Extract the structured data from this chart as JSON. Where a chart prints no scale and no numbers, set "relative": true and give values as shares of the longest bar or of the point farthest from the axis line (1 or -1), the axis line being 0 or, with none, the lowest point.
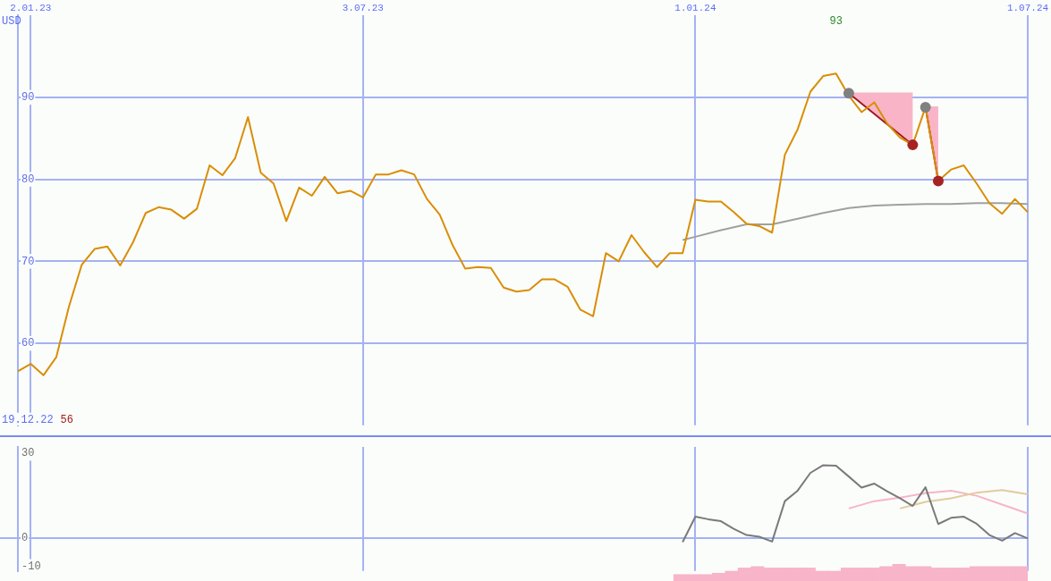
{
  "chart_data": [
    {
      "type": "line",
      "ylabel": "USD",
      "categories": [
        null,
        "2.01.23",
        null,
        null,
        null,
        null,
        null,
        null,
        null,
        null,
        null,
        null,
        null,
        null,
        null,
        null,
        null,
        null,
        null,
        null,
        null,
        null,
        null,
        null,
        null,
        null,
        null,
        "3.07.23",
        null,
        null,
        null,
        null,
        null,
        null,
        null,
        null,
        null,
        null,
        null,
        null,
        null,
        null,
        null,
        null,
        null,
        null,
        null,
        null,
        null,
        null,
        null,
        null,
        null,
        "1.01.24",
        null,
        null,
        null,
        null,
        null,
        null,
        null,
        null,
        null,
        null,
        null,
        null,
        null,
        null,
        null,
        null,
        null,
        null,
        null,
        null,
        null,
        null,
        null,
        null,
        null,
        "1.07.24"
      ],
      "ylim": [
        50,
        100
      ],
      "yticks": [
        60,
        70,
        80,
        90
      ],
      "grid": true,
      "annotations": [
        "19.12.22",
        "56",
        "93"
      ],
      "series": [
        {
          "type": "line",
          "color": "#9e1b1b",
          "values": [
            null,
            null,
            null,
            null,
            null,
            null,
            null,
            null,
            null,
            null,
            null,
            null,
            null,
            null,
            null,
            null,
            null,
            null,
            null,
            null,
            null,
            null,
            null,
            null,
            null,
            null,
            null,
            null,
            null,
            null,
            null,
            null,
            null,
            null,
            null,
            null,
            null,
            null,
            null,
            null,
            null,
            null,
            null,
            null,
            null,
            null,
            null,
            null,
            null,
            null,
            null,
            null,
            null,
            null,
            null,
            null,
            null,
            null,
            null,
            null,
            null,
            null,
            null,
            null,
            null,
            90.5,
            null,
            null,
            null,
            null,
            84.2,
            null,
            null,
            null,
            null,
            null,
            null,
            null,
            null,
            null
          ],
          "lower": [
            null,
            null,
            null,
            null,
            null,
            null,
            null,
            null,
            null,
            null,
            null,
            null,
            null,
            null,
            null,
            null,
            null,
            null,
            null,
            null,
            null,
            null,
            null,
            null,
            null,
            null,
            null,
            null,
            null,
            null,
            null,
            null,
            null,
            null,
            null,
            null,
            null,
            null,
            null,
            null,
            null,
            null,
            null,
            null,
            null,
            null,
            null,
            null,
            null,
            null,
            null,
            null,
            null,
            null,
            null,
            null,
            null,
            null,
            null,
            null,
            null,
            null,
            null,
            null,
            null,
            90.5,
            null,
            null,
            null,
            null,
            84.2,
            null,
            null,
            null,
            null,
            null,
            null,
            null,
            null,
            null
          ],
          "upper": [
            null,
            null,
            null,
            null,
            null,
            null,
            null,
            null,
            null,
            null,
            null,
            null,
            null,
            null,
            null,
            null,
            null,
            null,
            null,
            null,
            null,
            null,
            null,
            null,
            null,
            null,
            null,
            null,
            null,
            null,
            null,
            null,
            null,
            null,
            null,
            null,
            null,
            null,
            null,
            null,
            null,
            null,
            null,
            null,
            null,
            null,
            null,
            null,
            null,
            null,
            null,
            null,
            null,
            null,
            null,
            null,
            null,
            null,
            null,
            null,
            null,
            null,
            null,
            null,
            null,
            90.6,
            null,
            null,
            null,
            null,
            90.6,
            null,
            null,
            null,
            null,
            null,
            null,
            null,
            null,
            null
          ]
        },
        {
          "type": "line",
          "color": "#9e1b1b",
          "values": [
            null,
            null,
            null,
            null,
            null,
            null,
            null,
            null,
            null,
            null,
            null,
            null,
            null,
            null,
            null,
            null,
            null,
            null,
            null,
            null,
            null,
            null,
            null,
            null,
            null,
            null,
            null,
            null,
            null,
            null,
            null,
            null,
            null,
            null,
            null,
            null,
            null,
            null,
            null,
            null,
            null,
            null,
            null,
            null,
            null,
            null,
            null,
            null,
            null,
            null,
            null,
            null,
            null,
            null,
            null,
            null,
            null,
            null,
            null,
            null,
            null,
            null,
            null,
            null,
            null,
            null,
            null,
            null,
            null,
            null,
            null,
            88.8,
            79.8,
            null,
            null,
            null,
            null,
            null,
            null,
            null
          ],
          "lower": [
            null,
            null,
            null,
            null,
            null,
            null,
            null,
            null,
            null,
            null,
            null,
            null,
            null,
            null,
            null,
            null,
            null,
            null,
            null,
            null,
            null,
            null,
            null,
            null,
            null,
            null,
            null,
            null,
            null,
            null,
            null,
            null,
            null,
            null,
            null,
            null,
            null,
            null,
            null,
            null,
            null,
            null,
            null,
            null,
            null,
            null,
            null,
            null,
            null,
            null,
            null,
            null,
            null,
            null,
            null,
            null,
            null,
            null,
            null,
            null,
            null,
            null,
            null,
            null,
            null,
            null,
            null,
            null,
            null,
            null,
            null,
            88.8,
            79.8,
            null,
            null,
            null,
            null,
            null,
            null,
            null
          ],
          "upper": [
            null,
            null,
            null,
            null,
            null,
            null,
            null,
            null,
            null,
            null,
            null,
            null,
            null,
            null,
            null,
            null,
            null,
            null,
            null,
            null,
            null,
            null,
            null,
            null,
            null,
            null,
            null,
            null,
            null,
            null,
            null,
            null,
            null,
            null,
            null,
            null,
            null,
            null,
            null,
            null,
            null,
            null,
            null,
            null,
            null,
            null,
            null,
            null,
            null,
            null,
            null,
            null,
            null,
            null,
            null,
            null,
            null,
            null,
            null,
            null,
            null,
            null,
            null,
            null,
            null,
            null,
            null,
            null,
            null,
            null,
            null,
            88.9,
            88.9,
            null,
            null,
            null,
            null,
            null,
            null,
            null
          ]
        },
        {
          "type": "line",
          "color": "#a0a0a0",
          "values": [
            null,
            null,
            null,
            null,
            null,
            null,
            null,
            null,
            null,
            null,
            null,
            null,
            null,
            null,
            null,
            null,
            null,
            null,
            null,
            null,
            null,
            null,
            null,
            null,
            null,
            null,
            null,
            null,
            null,
            null,
            null,
            null,
            null,
            null,
            null,
            null,
            null,
            null,
            null,
            null,
            null,
            null,
            null,
            null,
            null,
            null,
            null,
            null,
            null,
            null,
            null,
            null,
            72.6,
            73.0,
            null,
            73.8,
            null,
            74.5,
            null,
            74.5,
            null,
            75.2,
            null,
            75.9,
            null,
            76.5,
            null,
            76.8,
            null,
            76.9,
            null,
            77.0,
            null,
            77.0,
            null,
            77.1,
            null,
            77.1,
            null,
            77.0
          ]
        },
        {
          "type": "line",
          "color": "#d98e04",
          "values": [
            56.6,
            57.5,
            56.1,
            58.3,
            64.5,
            69.6,
            71.5,
            71.8,
            69.5,
            72.3,
            75.9,
            76.6,
            76.3,
            75.2,
            76.4,
            81.7,
            80.5,
            82.6,
            87.6,
            80.8,
            79.5,
            74.9,
            79.0,
            78.0,
            80.3,
            78.3,
            78.6,
            77.8,
            80.6,
            80.6,
            81.1,
            80.6,
            77.6,
            75.7,
            72.0,
            69.1,
            69.3,
            69.2,
            66.8,
            66.3,
            66.5,
            67.8,
            67.8,
            66.9,
            64.1,
            63.3,
            71.0,
            70.0,
            73.2,
            71.1,
            69.3,
            71.0,
            71.0,
            77.5,
            77.3,
            77.3,
            76.0,
            74.6,
            74.3,
            73.5,
            83.0,
            86.1,
            90.7,
            92.6,
            92.9,
            90.2,
            88.2,
            89.4,
            86.8,
            85.1,
            84.2,
            88.8,
            79.8,
            81.2,
            81.7,
            79.5,
            77.1,
            75.8,
            77.6,
            76.0
          ]
        },
        {
          "type": "scatter",
          "marker": "circle",
          "color": "#808080",
          "values": [
            null,
            null,
            null,
            null,
            null,
            null,
            null,
            null,
            null,
            null,
            null,
            null,
            null,
            null,
            null,
            null,
            null,
            null,
            null,
            null,
            null,
            null,
            null,
            null,
            null,
            null,
            null,
            null,
            null,
            null,
            null,
            null,
            null,
            null,
            null,
            null,
            null,
            null,
            null,
            null,
            null,
            null,
            null,
            null,
            null,
            null,
            null,
            null,
            null,
            null,
            null,
            null,
            null,
            null,
            null,
            null,
            null,
            null,
            null,
            null,
            null,
            null,
            null,
            null,
            null,
            90.5,
            null,
            null,
            null,
            null,
            null,
            88.8,
            null,
            null,
            null,
            null,
            null,
            null,
            null,
            null
          ]
        },
        {
          "type": "scatter",
          "marker": "circle",
          "color": "#a52323",
          "values": [
            null,
            null,
            null,
            null,
            null,
            null,
            null,
            null,
            null,
            null,
            null,
            null,
            null,
            null,
            null,
            null,
            null,
            null,
            null,
            null,
            null,
            null,
            null,
            null,
            null,
            null,
            null,
            null,
            null,
            null,
            null,
            null,
            null,
            null,
            null,
            null,
            null,
            null,
            null,
            null,
            null,
            null,
            null,
            null,
            null,
            null,
            null,
            null,
            null,
            null,
            null,
            null,
            null,
            null,
            null,
            null,
            null,
            null,
            null,
            null,
            null,
            null,
            null,
            null,
            null,
            null,
            null,
            null,
            null,
            null,
            84.2,
            null,
            79.8,
            null,
            null,
            null,
            null,
            null,
            null,
            null
          ]
        }
      ]
    },
    {
      "type": "line",
      "tick_labels": "y",
      "categories": [
        null,
        "2.01.23",
        null,
        null,
        null,
        null,
        null,
        null,
        null,
        null,
        null,
        null,
        null,
        null,
        null,
        null,
        null,
        null,
        null,
        null,
        null,
        null,
        null,
        null,
        null,
        null,
        null,
        "3.07.23",
        null,
        null,
        null,
        null,
        null,
        null,
        null,
        null,
        null,
        null,
        null,
        null,
        null,
        null,
        null,
        null,
        null,
        null,
        null,
        null,
        null,
        null,
        null,
        null,
        null,
        "1.01.24",
        null,
        null,
        null,
        null,
        null,
        null,
        null,
        null,
        null,
        null,
        null,
        null,
        null,
        null,
        null,
        null,
        null,
        null,
        null,
        null,
        null,
        null,
        null,
        null,
        null,
        "1.07.24"
      ],
      "ylim": [
        -11.6,
        32.2
      ],
      "yticks": [
        30,
        0,
        -10
      ],
      "grid": "x",
      "ref_lines": [
        {
          "axis": "y",
          "value": 0,
          "color": "#a4b2f4"
        }
      ],
      "series": [
        {
          "type": "line",
          "color": "#f8b4c8",
          "values": [
            null,
            null,
            null,
            null,
            null,
            null,
            null,
            null,
            null,
            null,
            null,
            null,
            null,
            null,
            null,
            null,
            null,
            null,
            null,
            null,
            null,
            null,
            null,
            null,
            null,
            null,
            null,
            null,
            null,
            null,
            null,
            null,
            null,
            null,
            null,
            null,
            null,
            null,
            null,
            null,
            null,
            null,
            null,
            null,
            null,
            null,
            null,
            null,
            null,
            null,
            null,
            null,
            null,
            null,
            null,
            null,
            null,
            null,
            null,
            null,
            null,
            null,
            null,
            null,
            null,
            10.5,
            null,
            13.1,
            null,
            14.3,
            null,
            15.9,
            null,
            16.8,
            null,
            15.0,
            null,
            11.9,
            null,
            8.7
          ]
        },
        {
          "type": "line",
          "color": "#e2cb9c",
          "values": [
            null,
            null,
            null,
            null,
            null,
            null,
            null,
            null,
            null,
            null,
            null,
            null,
            null,
            null,
            null,
            null,
            null,
            null,
            null,
            null,
            null,
            null,
            null,
            null,
            null,
            null,
            null,
            null,
            null,
            null,
            null,
            null,
            null,
            null,
            null,
            null,
            null,
            null,
            null,
            null,
            null,
            null,
            null,
            null,
            null,
            null,
            null,
            null,
            null,
            null,
            null,
            null,
            null,
            null,
            null,
            null,
            null,
            null,
            null,
            null,
            null,
            null,
            null,
            null,
            null,
            null,
            null,
            null,
            null,
            10.5,
            null,
            12.8,
            null,
            14.1,
            null,
            16.1,
            null,
            17.0,
            null,
            15.5
          ]
        },
        {
          "type": "line",
          "color": "#7a7a7a",
          "values": [
            null,
            null,
            null,
            null,
            null,
            null,
            null,
            null,
            null,
            null,
            null,
            null,
            null,
            null,
            null,
            null,
            null,
            null,
            null,
            null,
            null,
            null,
            null,
            null,
            null,
            null,
            null,
            null,
            null,
            null,
            null,
            null,
            null,
            null,
            null,
            null,
            null,
            null,
            null,
            null,
            null,
            null,
            null,
            null,
            null,
            null,
            null,
            null,
            null,
            null,
            null,
            null,
            -1.4,
            7.6,
            6.7,
            6.0,
            3.3,
            1.1,
            0.5,
            -1.2,
            13.1,
            16.8,
            23.1,
            25.8,
            25.6,
            21.8,
            17.9,
            19.3,
            16.6,
            14.1,
            11.4,
            18.0,
            5.0,
            7.2,
            7.6,
            5.1,
            1.1,
            -0.9,
            1.8,
            -0.1
          ]
        }
      ]
    },
    {
      "type": "bar",
      "relative": true,
      "tick_labels": false,
      "color": "#f8b4c8",
      "categories": [
        null,
        null,
        null,
        null,
        null,
        null,
        null,
        null,
        null,
        null,
        null,
        null,
        null,
        null,
        null,
        null,
        null,
        null,
        null,
        null,
        null,
        null,
        null,
        null,
        null,
        null,
        null,
        null,
        null,
        null,
        null,
        null,
        null,
        null,
        null,
        null,
        null,
        null,
        null,
        null,
        null,
        null,
        null,
        null,
        null,
        null,
        null,
        null,
        null,
        null,
        null,
        null,
        null,
        null,
        null,
        null,
        null,
        null,
        null,
        null,
        null,
        null,
        null,
        null,
        null,
        null,
        null,
        null,
        null,
        null,
        null,
        null,
        null,
        null,
        null,
        null,
        null,
        null,
        null,
        null
      ],
      "values": [
        null,
        null,
        null,
        null,
        null,
        null,
        null,
        null,
        null,
        null,
        null,
        null,
        null,
        null,
        null,
        null,
        null,
        null,
        null,
        null,
        null,
        null,
        null,
        null,
        null,
        null,
        null,
        null,
        null,
        null,
        null,
        null,
        null,
        null,
        null,
        null,
        null,
        null,
        null,
        null,
        null,
        null,
        null,
        null,
        null,
        null,
        null,
        null,
        null,
        null,
        null,
        null,
        0.38,
        0.38,
        0.38,
        0.46,
        0.58,
        0.77,
        0.85,
        0.77,
        0.77,
        0.77,
        0.77,
        0.58,
        0.58,
        0.77,
        0.77,
        0.77,
        0.85,
        1,
        0.85,
        0.85,
        0.77,
        0.77,
        0.77,
        0.85,
        0.85,
        0.85,
        0.85,
        0.85
      ]
    }
  ]
}
